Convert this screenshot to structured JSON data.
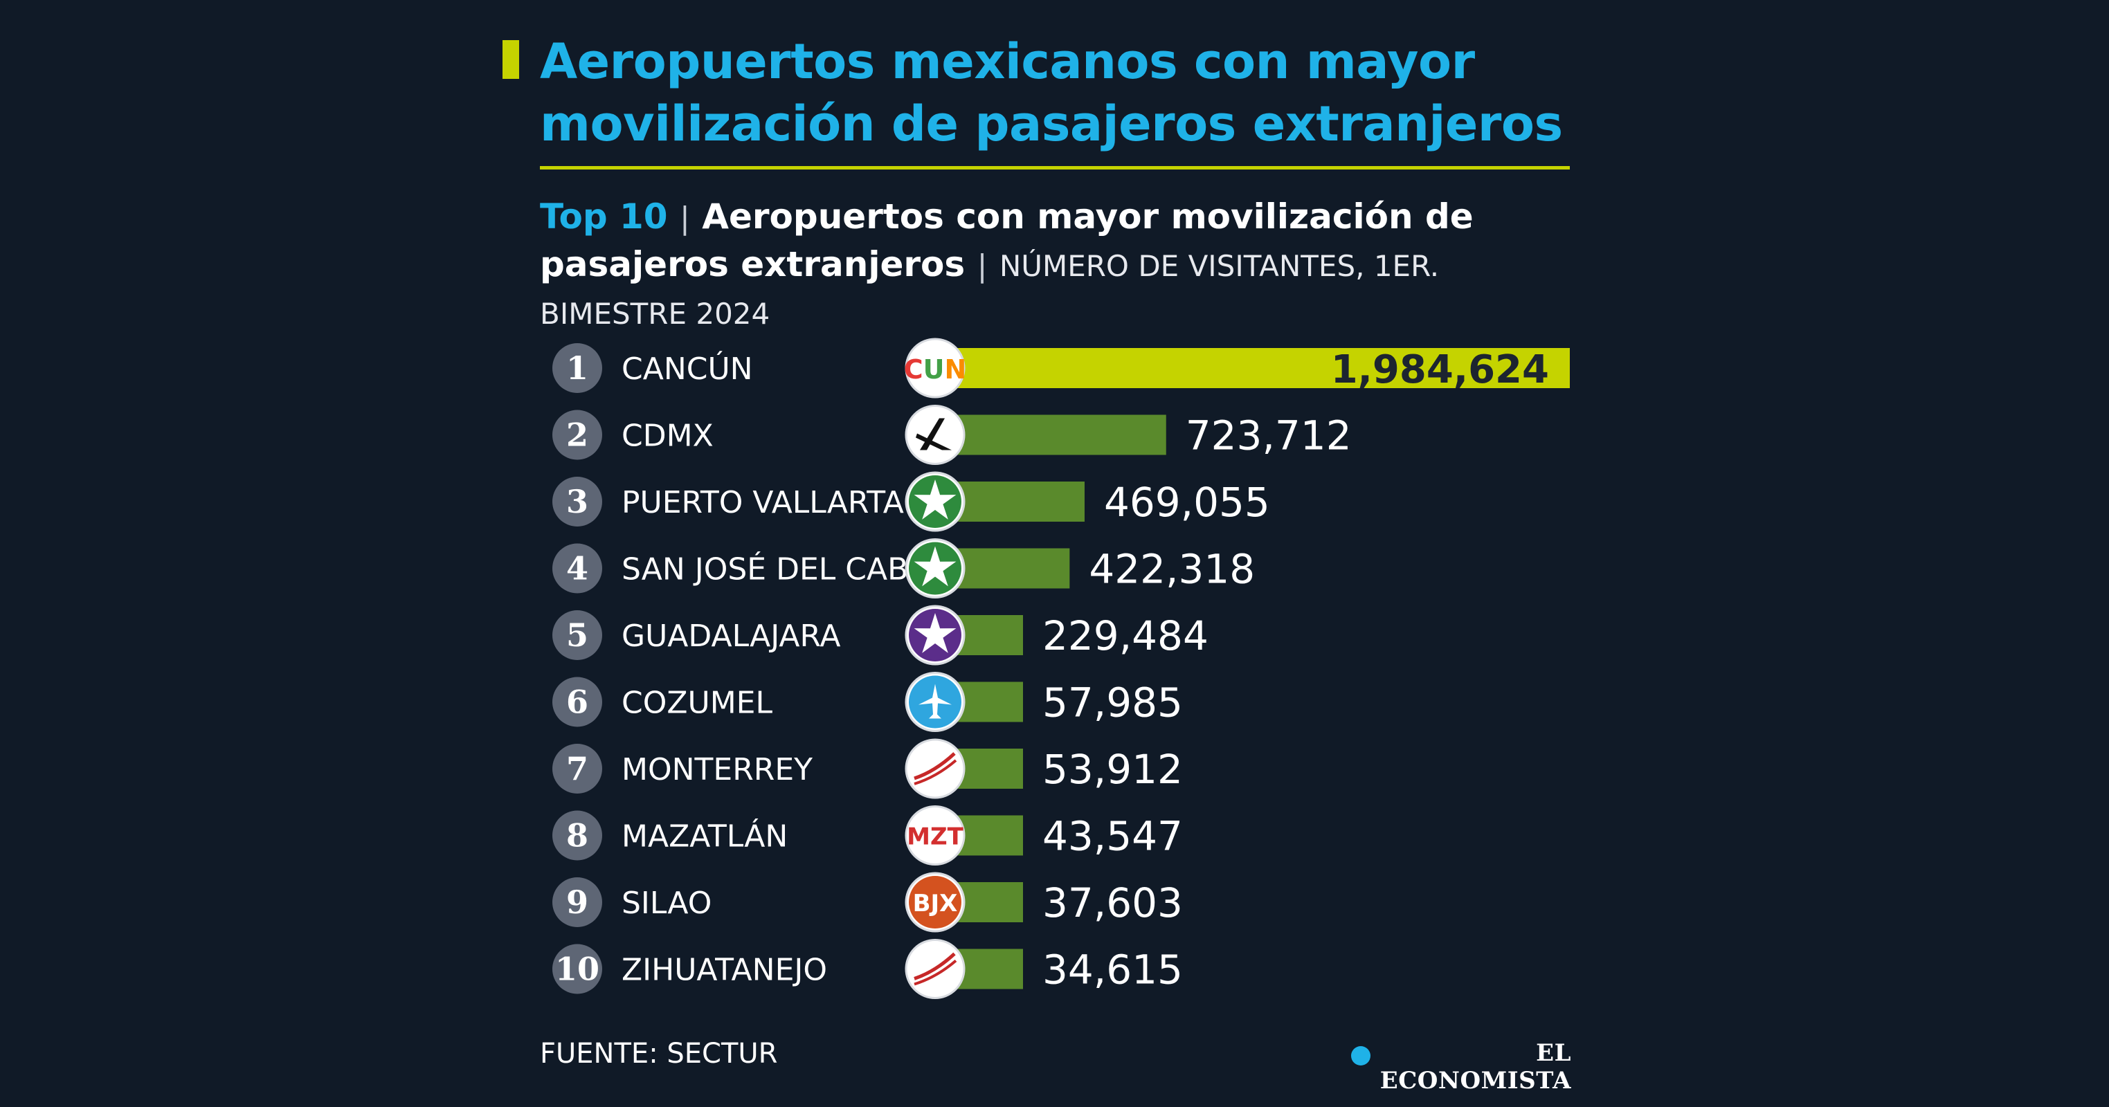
{
  "title": "Aeropuertos mexicanos con mayor movilización de pasajeros extranjeros",
  "subtitle": {
    "top": "Top 10",
    "separator": "|",
    "text": "Aeropuertos con mayor movilización de pasajeros extranjeros",
    "unit_separator": "|",
    "unit": "NÚMERO DE VISITANTES, 1ER. BIMESTRE 2024"
  },
  "colors": {
    "background": "#101a27",
    "title": "#1fb2e8",
    "accent": "#c5d300",
    "bar": "#5a8a2c",
    "top_bar": "#c5d300"
  },
  "chart_data": {
    "type": "bar",
    "orientation": "horizontal",
    "ranks": [
      "1",
      "2",
      "3",
      "4",
      "5",
      "6",
      "7",
      "8",
      "9",
      "10"
    ],
    "categories": [
      "CANCÚN",
      "CDMX",
      "PUERTO VALLARTA",
      "SAN JOSÉ DEL CABO",
      "GUADALAJARA",
      "COZUMEL",
      "MONTERREY",
      "MAZATLÁN",
      "SILAO",
      "ZIHUATANEJO"
    ],
    "values": [
      1984624,
      723712,
      469055,
      422318,
      229484,
      57985,
      53912,
      43547,
      37603,
      34615
    ],
    "value_labels": [
      "1,984,624",
      "723,712",
      "469,055",
      "422,318",
      "229,484",
      "57,985",
      "53,912",
      "43,547",
      "37,603",
      "34,615"
    ],
    "logos": [
      {
        "icon": "cun-logo-icon",
        "text": "CUN"
      },
      {
        "icon": "aicm-logo-icon",
        "text": ""
      },
      {
        "icon": "gap-star-logo-icon",
        "text": ""
      },
      {
        "icon": "gap-star-logo-icon",
        "text": ""
      },
      {
        "icon": "gap-star-purple-logo-icon",
        "text": ""
      },
      {
        "icon": "plane-logo-icon",
        "text": ""
      },
      {
        "icon": "oma-swoosh-logo-icon",
        "text": ""
      },
      {
        "icon": "mzt-logo-icon",
        "text": "MZT"
      },
      {
        "icon": "bjx-logo-icon",
        "text": "BJX"
      },
      {
        "icon": "oma-swoosh-logo-icon",
        "text": ""
      }
    ],
    "grid": false,
    "legend": "none"
  },
  "source": "FUENTE: SECTUR",
  "brand": "EL ECONOMISTA"
}
